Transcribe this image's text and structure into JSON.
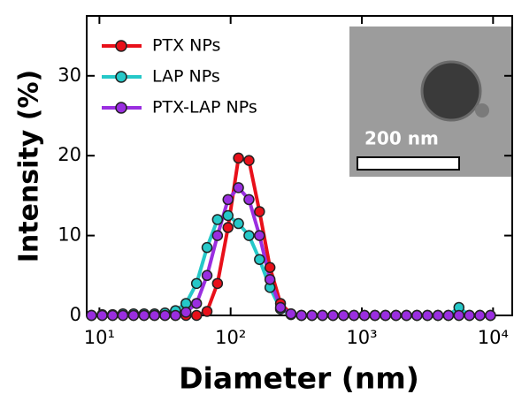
{
  "chart_data": {
    "type": "line",
    "x_label": "Diameter (nm)",
    "y_label": "Intensity (%)",
    "x": [
      8.7,
      10.5,
      12.6,
      15.1,
      18.2,
      21.9,
      26.3,
      31.6,
      38.0,
      45.7,
      55.0,
      66.1,
      79.4,
      95.5,
      114.8,
      138.0,
      166.0,
      199.5,
      239.9,
      288.4,
      346.7,
      416.9,
      501.2,
      602.6,
      724.4,
      871.0,
      1047,
      1259,
      1514,
      1820,
      2188,
      2630,
      3162,
      3802,
      4571,
      5495,
      6607,
      7943,
      9550
    ],
    "series": [
      {
        "name": "PTX NPs",
        "color": "#e8101a",
        "values": [
          0,
          0,
          0,
          0,
          0,
          0,
          0,
          0,
          0,
          0,
          0,
          0.5,
          4,
          11,
          19.7,
          19.4,
          13,
          6,
          1.5,
          0.2,
          0,
          0,
          0,
          0,
          0,
          0,
          0,
          0,
          0,
          0,
          0,
          0,
          0,
          0,
          0,
          0,
          0,
          0,
          0
        ]
      },
      {
        "name": "LAP NPs",
        "color": "#25c8c8",
        "values": [
          0,
          0.1,
          0.1,
          0.2,
          0.2,
          0.2,
          0.2,
          0.3,
          0.6,
          1.5,
          4,
          8.5,
          12,
          12.5,
          11.5,
          10,
          7,
          3.5,
          0.8,
          0.1,
          0,
          0,
          0,
          0,
          0,
          0,
          0,
          0,
          0,
          0,
          0,
          0,
          0,
          0,
          0,
          1.0,
          0,
          0,
          0
        ]
      },
      {
        "name": "PTX-LAP NPs",
        "color": "#9a2ee0",
        "values": [
          0,
          0,
          0,
          0,
          0,
          0,
          0,
          0,
          0,
          0.4,
          1.5,
          5,
          10,
          14.5,
          16,
          14.5,
          10,
          4.5,
          1,
          0.2,
          0,
          0,
          0,
          0,
          0,
          0,
          0,
          0,
          0,
          0,
          0,
          0,
          0,
          0,
          0,
          0,
          0,
          0,
          0
        ]
      }
    ],
    "xlog": true,
    "xlim": [
      8,
      14000
    ],
    "ylim": [
      0,
      37.5
    ],
    "xticks": [
      {
        "value": 10,
        "label": "10¹"
      },
      {
        "value": 100,
        "label": "10²"
      },
      {
        "value": 1000,
        "label": "10³"
      },
      {
        "value": 10000,
        "label": "10⁴"
      }
    ],
    "yticks": [
      0,
      10,
      20,
      30
    ],
    "inset_label": "200 nm"
  }
}
